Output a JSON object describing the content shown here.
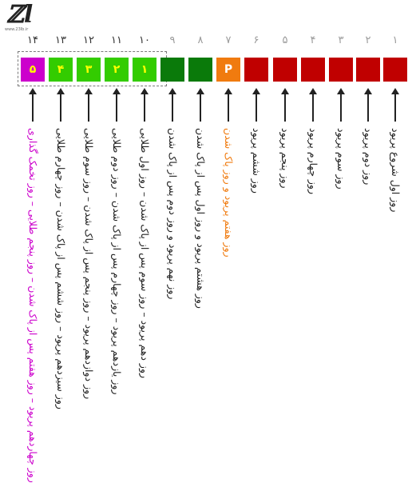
{
  "logo": {
    "mark": "ℤl",
    "url": "www.23lb.ir"
  },
  "colors": {
    "period": "#c00000",
    "pink": "#f07b0f",
    "white": "#0a7a0a",
    "tahara": "#33cc00",
    "ghosl": "#cc00cc"
  },
  "days": [
    {
      "number": "۱",
      "box_label": "",
      "box_color": "#c00000",
      "label_color": "#ffffff",
      "caption": "روز اول شروع پریود",
      "caption_color": "#222222",
      "number_style": "gray"
    },
    {
      "number": "۲",
      "box_label": "",
      "box_color": "#c00000",
      "label_color": "#ffffff",
      "caption": "روز دوم پریود",
      "caption_color": "#222222",
      "number_style": "gray"
    },
    {
      "number": "۳",
      "box_label": "",
      "box_color": "#c00000",
      "label_color": "#ffffff",
      "caption": "روز سوم پریود",
      "caption_color": "#222222",
      "number_style": "gray"
    },
    {
      "number": "۴",
      "box_label": "",
      "box_color": "#c00000",
      "label_color": "#ffffff",
      "caption": "روز چهارم پریود",
      "caption_color": "#222222",
      "number_style": "gray"
    },
    {
      "number": "۵",
      "box_label": "",
      "box_color": "#c00000",
      "label_color": "#ffffff",
      "caption": "روز پنجم پریود",
      "caption_color": "#222222",
      "number_style": "gray"
    },
    {
      "number": "۶",
      "box_label": "",
      "box_color": "#c00000",
      "label_color": "#ffffff",
      "caption": "روز ششم پریود",
      "caption_color": "#222222",
      "number_style": "gray"
    },
    {
      "number": "۷",
      "box_label": "P",
      "box_color": "#f07b0f",
      "label_color": "#ffffff",
      "caption": "روز هفتم پریود و روز پاک شدن",
      "caption_color": "#f07b0f",
      "number_style": "gray"
    },
    {
      "number": "۸",
      "box_label": "",
      "box_color": "#0a7a0a",
      "label_color": "#ffffff",
      "caption": "روز هشتم پریود و روز اول پس از پاک شدن",
      "caption_color": "#222222",
      "number_style": "gray"
    },
    {
      "number": "۹",
      "box_label": "",
      "box_color": "#0a7a0a",
      "label_color": "#ffffff",
      "caption": "روز نهم پریود و روز دوم پس از پاک شدن",
      "caption_color": "#222222",
      "number_style": "gray"
    },
    {
      "number": "۱۰",
      "box_label": "۱",
      "box_color": "#33cc00",
      "label_color": "#ffff00",
      "caption": "روز دهم پریود – روز سوم پس از پاک شدن – روز اول طلایی",
      "caption_color": "#222222",
      "number_style": "dark"
    },
    {
      "number": "۱۱",
      "box_label": "۲",
      "box_color": "#33cc00",
      "label_color": "#ffff00",
      "caption": "روز یازدهم پریود – روز چهارم پس از پاک شدن – روز دوم طلایی",
      "caption_color": "#222222",
      "number_style": "dark"
    },
    {
      "number": "۱۲",
      "box_label": "۳",
      "box_color": "#33cc00",
      "label_color": "#ffff00",
      "caption": "روز دوازدهم پریود – روز پنجم پس از پاک شدن – روز سوم طلایی",
      "caption_color": "#222222",
      "number_style": "dark"
    },
    {
      "number": "۱۳",
      "box_label": "۴",
      "box_color": "#33cc00",
      "label_color": "#ffff00",
      "caption": "روز سیزدهم پریود – روز ششم پس از پاک شدن – روز چهارم طلایی",
      "caption_color": "#222222",
      "number_style": "dark"
    },
    {
      "number": "۱۴",
      "box_label": "۵",
      "box_color": "#cc00cc",
      "label_color": "#ffff00",
      "caption": "روز چهاردهم پریود – روز هفتم پس از پاک شدن – روز پنجم طلایی – روز تخمک گذاری",
      "caption_color": "#cc00cc",
      "number_style": "dark"
    }
  ]
}
